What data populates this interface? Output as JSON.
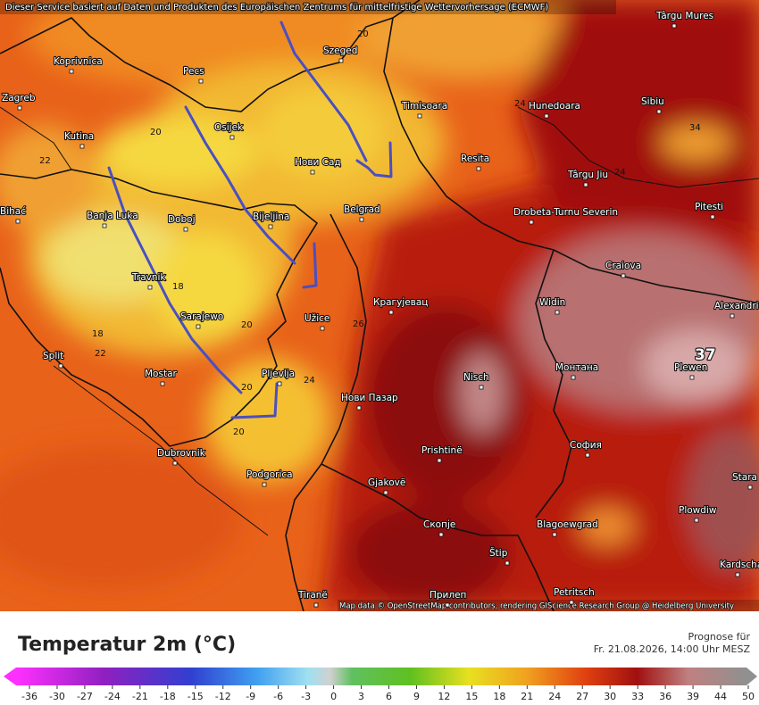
{
  "header_note": "Dieser Service basiert auf Daten und Produkten des Europäischen Zentrums für mittelfristige Wettervorhersage (ECMWF)",
  "attribution": "Map data © OpenStreetMap contributors, rendering GIScience Research Group @ Heidelberg University",
  "cities": [
    "Koprivnica",
    "Pecs",
    "Szeged",
    "Târgu Mures",
    "Zagreb",
    "Kutina",
    "Osijek",
    "Timisoara",
    "Hunedoara",
    "Sibiu",
    "Нови Сад",
    "Resita",
    "Târgu Jiu",
    "Pitesti",
    "Bihać",
    "Banja Luka",
    "Doboj",
    "Bijeljina",
    "Belgrad",
    "Drobeta-Turnu Severin",
    "Craiova",
    "Travnik",
    "Крагујевац",
    "Widin",
    "Alexandria",
    "Sarajewo",
    "Užice",
    "Split",
    "Mostar",
    "Pljevlja",
    "Nisch",
    "Монтана",
    "Plewen",
    "Нови Пазар",
    "Dubrovnik",
    "Prishtinë",
    "София",
    "Podgorica",
    "Gjakovë",
    "Stara Zagora",
    "Plowdiw",
    "Скопје",
    "Blagoewgrad",
    "Štip",
    "Kardscha",
    "Tiranë",
    "Прилеп",
    "Petritsch"
  ],
  "contour_labels": [
    20,
    20,
    22,
    18,
    18,
    22,
    20,
    20,
    20,
    24,
    26,
    24,
    24,
    34,
    37
  ],
  "legend": {
    "title": "Temperatur 2m (°C)",
    "forecast_label": "Prognose für",
    "forecast_time": "Fr. 21.08.2026, 14:00 Uhr MESZ",
    "scale": [
      -36,
      -30,
      -27,
      -24,
      -21,
      -18,
      -15,
      -12,
      -9,
      -6,
      -3,
      0,
      3,
      6,
      9,
      12,
      15,
      18,
      21,
      24,
      27,
      30,
      33,
      36,
      39,
      44,
      50
    ]
  }
}
